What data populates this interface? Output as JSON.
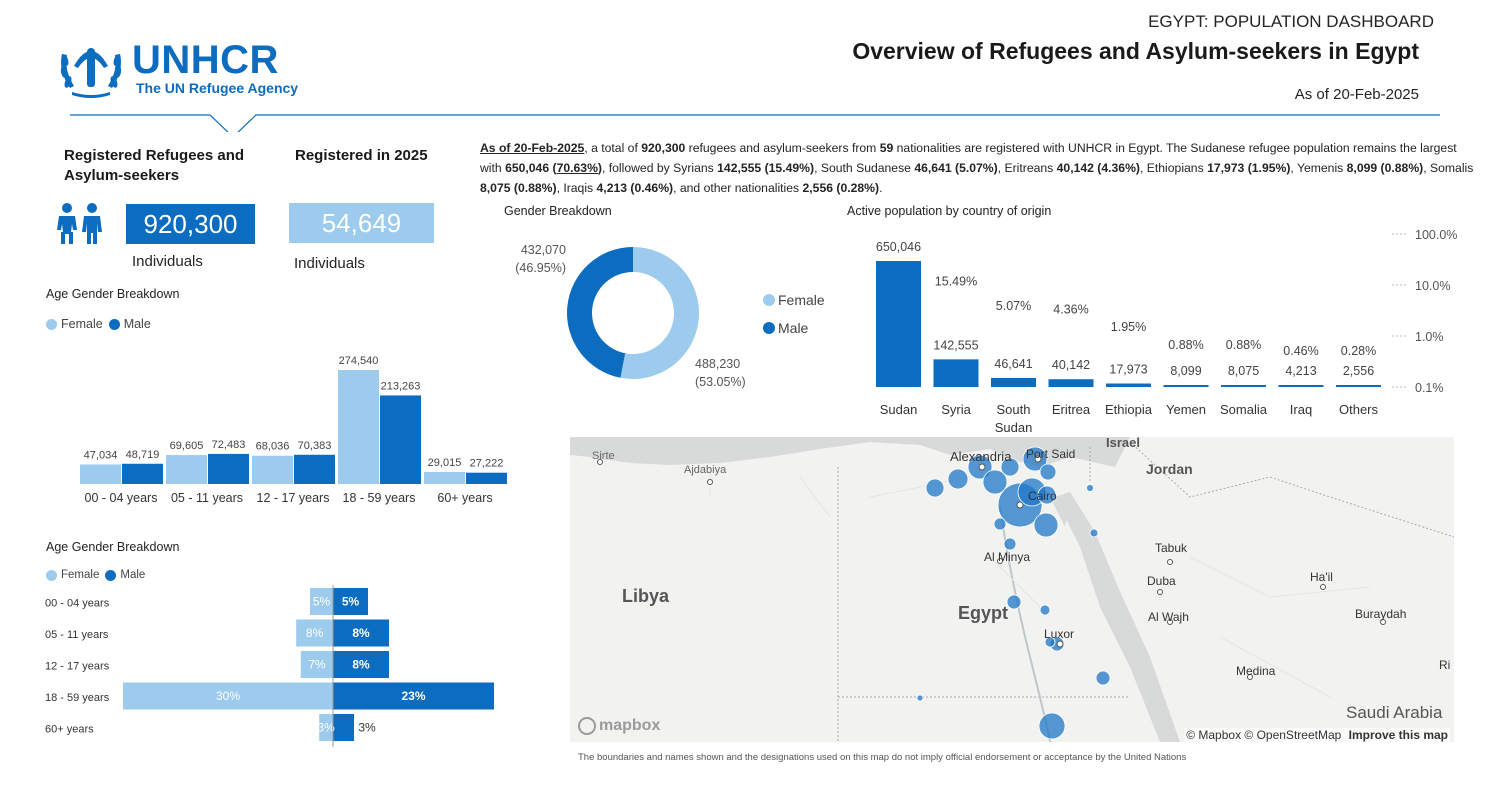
{
  "header": {
    "logo_name": "UNHCR",
    "logo_tagline": "The UN Refugee Agency",
    "kicker": "EGYPT: POPULATION DASHBOARD",
    "title": "Overview of Refugees and Asylum-seekers in Egypt",
    "as_of": "As of 20-Feb-2025"
  },
  "kpis": {
    "registered": {
      "label": "Registered Refugees and Asylum-seekers",
      "value": "920,300",
      "unit": "Individuals",
      "color": "#0c6cbf"
    },
    "registered_2025": {
      "label": "Registered in 2025",
      "value": "54,649",
      "unit": "Individuals",
      "color": "#9ccbee"
    }
  },
  "summary": {
    "date": "As of 20-Feb-2025",
    "t1": ", a total of ",
    "total": "920,300",
    "t2": " refugees and asylum-seekers from ",
    "nationalities": "59",
    "t3": " nationalities are registered with UNHCR in Egypt. The Sudanese refugee population remains the largest with ",
    "sudan_n": "650,046",
    "sudan_p": "70.63%",
    "t4": ", followed by Syrians ",
    "syria": "142,555 (15.49%)",
    "t5": ", South Sudanese ",
    "ssudan": "46,641 (5.07%)",
    "t6": ", Eritreans ",
    "eritrea": "40,142 (4.36%)",
    "t7": ", Ethiopians ",
    "ethiopia": "17,973 (1.95%)",
    "t8": ", Yemenis ",
    "yemen": "8,099 (0.88%)",
    "t9": ", Somalis ",
    "somalia": "8,075 (0.88%)",
    "t10": ", Iraqis ",
    "iraq": "4,213 (0.46%)",
    "t11": ", and other nationalities ",
    "others": "2,556 (0.28%)",
    "t12": "."
  },
  "colors": {
    "female": "#9ccbee",
    "male": "#0c6cbf"
  },
  "chart_data": [
    {
      "id": "age-gender-columns",
      "type": "bar",
      "title": "Age Gender Breakdown",
      "legend": [
        "Female",
        "Male"
      ],
      "categories": [
        "00 - 04 years",
        "05 - 11 years",
        "12 - 17 years",
        "18 - 59 years",
        "60+ years"
      ],
      "series": [
        {
          "name": "Female",
          "values": [
            47034,
            69605,
            68036,
            274540,
            29015
          ],
          "labels": [
            "47,034",
            "69,605",
            "68,036",
            "274,540",
            "29,015"
          ]
        },
        {
          "name": "Male",
          "values": [
            48719,
            72483,
            70383,
            213263,
            27222
          ],
          "labels": [
            "48,719",
            "72,483",
            "70,383",
            "213,263",
            "27,222"
          ]
        }
      ],
      "ylim": [
        0,
        274540
      ]
    },
    {
      "id": "age-gender-pyramid",
      "type": "bar",
      "title": "Age Gender Breakdown",
      "legend": [
        "Female",
        "Male"
      ],
      "categories": [
        "00 - 04 years",
        "05 - 11 years",
        "12 - 17 years",
        "18 - 59 years",
        "60+ years"
      ],
      "series": [
        {
          "name": "Female",
          "values": [
            5,
            8,
            7,
            30,
            3
          ],
          "labels": [
            "5%",
            "8%",
            "7%",
            "30%",
            "3%"
          ]
        },
        {
          "name": "Male",
          "values": [
            5,
            8,
            8,
            23,
            3
          ],
          "labels": [
            "5%",
            "8%",
            "8%",
            "23%",
            "3%"
          ]
        }
      ]
    },
    {
      "id": "gender-donut",
      "type": "pie",
      "title": "Gender Breakdown",
      "categories": [
        "Female",
        "Male"
      ],
      "values": [
        488230,
        432070
      ],
      "labels": [
        [
          "488,230",
          "(53.05%)"
        ],
        [
          "432,070",
          "(46.95%)"
        ]
      ]
    },
    {
      "id": "country-of-origin",
      "type": "bar",
      "title": "Active population by country of origin",
      "categories": [
        "Sudan",
        "Syria",
        "South Sudan",
        "Eritrea",
        "Ethiopia",
        "Yemen",
        "Somalia",
        "Iraq",
        "Others"
      ],
      "values": [
        650046,
        142555,
        46641,
        40142,
        17973,
        8099,
        8075,
        4213,
        2556
      ],
      "value_labels": [
        "650,046",
        "142,555",
        "46,641",
        "40,142",
        "17,973",
        "8,099",
        "8,075",
        "4,213",
        "2,556"
      ],
      "percents": [
        70.63,
        15.49,
        5.07,
        4.36,
        1.95,
        0.88,
        0.88,
        0.46,
        0.28
      ],
      "percent_labels": [
        "",
        "15.49%",
        "5.07%",
        "4.36%",
        "1.95%",
        "0.88%",
        "0.88%",
        "0.46%",
        "0.28%"
      ],
      "secondary_axis_ticks": [
        "100.0%",
        "10.0%",
        "1.0%",
        "0.1%"
      ],
      "secondary_axis_scale": "log"
    }
  ],
  "map": {
    "places": [
      "Alexandria",
      "Port Said",
      "Cairo",
      "Al Minya",
      "Luxor",
      "Egypt",
      "Libya",
      "Israel",
      "Jordan",
      "Tabuk",
      "Duba",
      "Ha'il",
      "Al Wajh",
      "Buraydah",
      "Medina",
      "Saudi Arabia",
      "Sirte",
      "Ajdabiya",
      "Ri"
    ],
    "attribution": "© Mapbox © OpenStreetMap",
    "improve_link": "Improve this map",
    "provider_logo": "mapbox",
    "bubble_color": "#1f77c8"
  },
  "disclaimer": "The boundaries and names shown and the designations used on this map do not imply official endorsement or acceptance by the United Nations"
}
